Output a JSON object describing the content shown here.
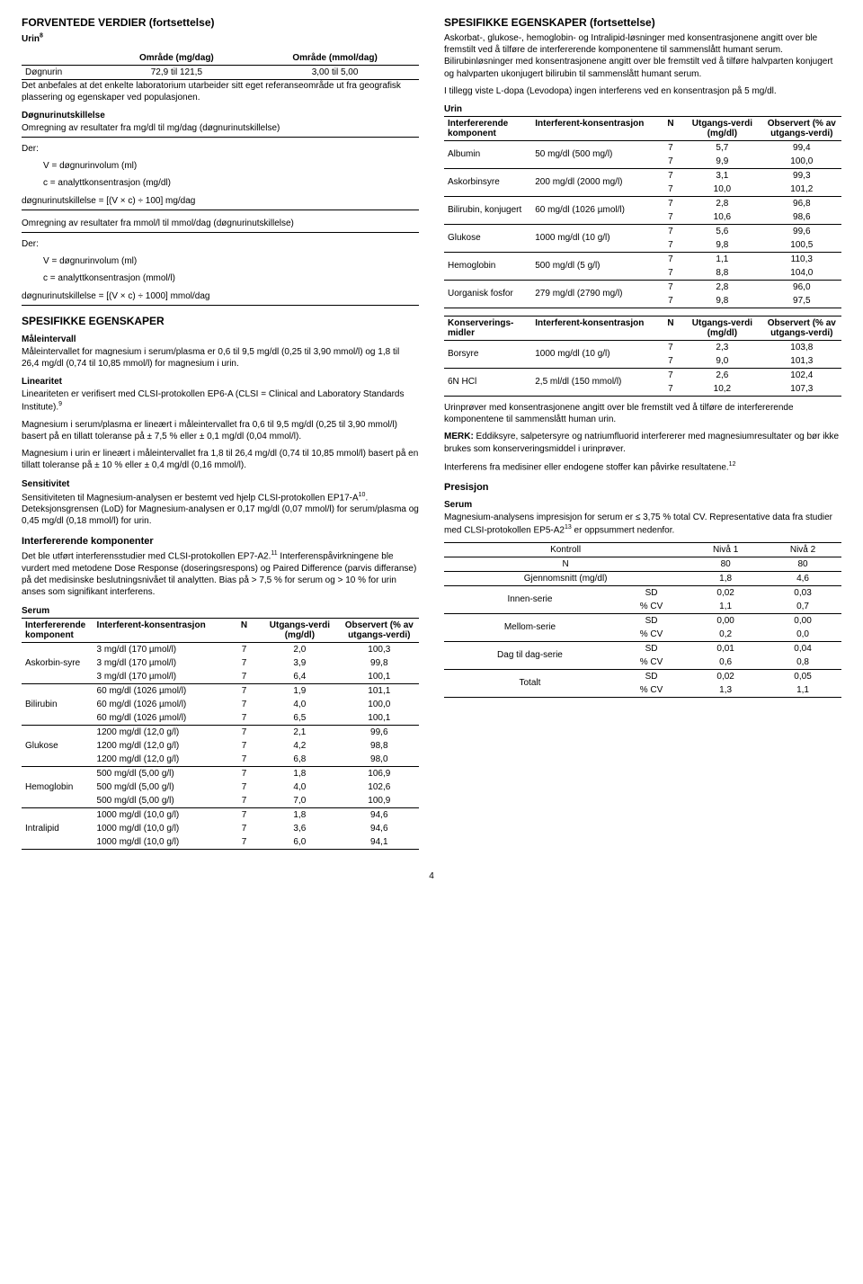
{
  "left": {
    "h2_forv": "FORVENTEDE VERDIER (fortsettelse)",
    "urin8": "Urin",
    "urin8_sup": "8",
    "tbl_urin_h1": "Område (mg/dag)",
    "tbl_urin_h2": "Område (mmol/dag)",
    "tbl_urin_row_label": "Døgnurin",
    "tbl_urin_row_v1": "72,9 til 121,5",
    "tbl_urin_row_v2": "3,00 til 5,00",
    "p_anbef": "Det anbefales at det enkelte laboratorium utarbeider sitt eget referanseområde ut fra geografisk plassering og egenskaper ved populasjonen.",
    "h4_dogn": "Døgnurinutskillelse",
    "p_omregn1": "Omregning av resultater fra mg/dl til mg/dag (døgnurinutskillelse)",
    "der": "Der:",
    "v_eq1": "V = døgnurinvolum (ml)",
    "c_eq1": "c = analyttkonsentrasjon (mg/dl)",
    "form1": "døgnurinutskillelse = [(V × c) ÷ 100] mg/dag",
    "p_omregn2": "Omregning av resultater fra mmol/l til mmol/dag (døgnurinutskillelse)",
    "v_eq2": "V = døgnurinvolum (ml)",
    "c_eq2": "c = analyttkonsentrasjon (mmol/l)",
    "form2": "døgnurinutskillelse = [(V × c) ÷ 1000] mmol/dag",
    "h2_spes": "SPESIFIKKE EGENSKAPER",
    "h4_maal": "Måleintervall",
    "p_maal": "Måleintervallet for magnesium i serum/plasma er 0,6 til 9,5 mg/dl (0,25 til 3,90 mmol/l) og 1,8 til 26,4 mg/dl (0,74 til 10,85 mmol/l) for magnesium i urin.",
    "h4_lin": "Linearitet",
    "p_lin1a": "Lineariteten er verifisert med CLSI-protokollen EP6-A (CLSI = Clinical and Laboratory Standards Institute).",
    "p_lin1_sup": "9",
    "p_lin2": "Magnesium i serum/plasma er lineært i måleintervallet fra 0,6 til 9,5 mg/dl (0,25 til 3,90 mmol/l) basert på en tillatt toleranse på ± 7,5 % eller ± 0,1 mg/dl (0,04 mmol/l).",
    "p_lin3": "Magnesium i urin er lineært i måleintervallet fra 1,8 til 26,4 mg/dl (0,74 til 10,85 mmol/l) basert på en tillatt toleranse på ± 10 % eller ± 0,4 mg/dl (0,16 mmol/l).",
    "h4_sens": "Sensitivitet",
    "p_sens_a": "Sensitiviteten til Magnesium-analysen er bestemt ved hjelp CLSI-protokollen EP17-A",
    "p_sens_sup": "10",
    "p_sens_b": ". Deteksjonsgrensen (LoD) for Magnesium-analysen er 0,17 mg/dl (0,07 mmol/l) for serum/plasma og 0,45 mg/dl (0,18 mmol/l) for urin.",
    "h3_int": "Interfererende komponenter",
    "p_int_a": "Det ble utført interferensstudier med CLSI-protokollen EP7-A2.",
    "p_int_sup": "11",
    "p_int_b": " Interferenspåvirkningene ble vurdert med metodene Dose Response (doseringsrespons) og Paired Difference (parvis differanse) på det medisinske beslutningsnivået til analytten. Bias på > 7,5 % for serum og > 10 % for urin anses som signifikant interferens.",
    "h4_serum": "Serum",
    "th_comp": "Interfererende komponent",
    "th_conc": "Interferent-konsentrasjon",
    "th_n": "N",
    "th_utg": "Utgangs-verdi (mg/dl)",
    "th_obs": "Observert (% av utgangs-verdi)",
    "serum_rows": [
      [
        "Askorbin-syre",
        "3 mg/dl (170 µmol/l)",
        "7",
        "2,0",
        "100,3"
      ],
      [
        "",
        "3 mg/dl (170 µmol/l)",
        "7",
        "3,9",
        "99,8"
      ],
      [
        "",
        "3 mg/dl (170 µmol/l)",
        "7",
        "6,4",
        "100,1"
      ],
      [
        "Bilirubin",
        "60 mg/dl (1026 µmol/l)",
        "7",
        "1,9",
        "101,1"
      ],
      [
        "",
        "60 mg/dl (1026 µmol/l)",
        "7",
        "4,0",
        "100,0"
      ],
      [
        "",
        "60 mg/dl (1026 µmol/l)",
        "7",
        "6,5",
        "100,1"
      ],
      [
        "Glukose",
        "1200 mg/dl (12,0 g/l)",
        "7",
        "2,1",
        "99,6"
      ],
      [
        "",
        "1200 mg/dl (12,0 g/l)",
        "7",
        "4,2",
        "98,8"
      ],
      [
        "",
        "1200 mg/dl (12,0 g/l)",
        "7",
        "6,8",
        "98,0"
      ],
      [
        "Hemoglobin",
        "500 mg/dl (5,00 g/l)",
        "7",
        "1,8",
        "106,9"
      ],
      [
        "",
        "500 mg/dl (5,00 g/l)",
        "7",
        "4,0",
        "102,6"
      ],
      [
        "",
        "500 mg/dl (5,00 g/l)",
        "7",
        "7,0",
        "100,9"
      ],
      [
        "Intralipid",
        "1000 mg/dl (10,0 g/l)",
        "7",
        "1,8",
        "94,6"
      ],
      [
        "",
        "1000 mg/dl (10,0 g/l)",
        "7",
        "3,6",
        "94,6"
      ],
      [
        "",
        "1000 mg/dl (10,0 g/l)",
        "7",
        "6,0",
        "94,1"
      ]
    ]
  },
  "right": {
    "h2_spes2": "SPESIFIKKE EGENSKAPER (fortsettelse)",
    "p_ask": "Askorbat-, glukose-, hemoglobin- og Intralipid-løsninger med konsentrasjonene angitt over ble fremstilt ved å tilføre de interfererende komponentene til sammenslått humant serum.  Bilirubinløsninger med konsentrasjonene angitt over ble fremstilt ved å tilføre halvparten konjugert og halvparten ukonjugert bilirubin til sammenslått humant serum.",
    "p_ldopa": "I tillegg viste L-dopa (Levodopa) ingen interferens ved en konsentrasjon på 5 mg/dl.",
    "h4_urin": "Urin",
    "th_comp": "Interfererende komponent",
    "th_conc": "Interferent-konsentrasjon",
    "th_n": "N",
    "th_utg": "Utgangs-verdi (mg/dl)",
    "th_obs": "Observert (% av utgangs-verdi)",
    "urin_rows": [
      [
        "Albumin",
        "50 mg/dl (500 mg/l)",
        "7",
        "5,7",
        "99,4"
      ],
      [
        "",
        "",
        "7",
        "9,9",
        "100,0"
      ],
      [
        "Askorbinsyre",
        "200 mg/dl (2000 mg/l)",
        "7",
        "3,1",
        "99,3"
      ],
      [
        "",
        "",
        "7",
        "10,0",
        "101,2"
      ],
      [
        "Bilirubin, konjugert",
        "60 mg/dl (1026 µmol/l)",
        "7",
        "2,8",
        "96,8"
      ],
      [
        "",
        "",
        "7",
        "10,6",
        "98,6"
      ],
      [
        "Glukose",
        "1000 mg/dl (10 g/l)",
        "7",
        "5,6",
        "99,6"
      ],
      [
        "",
        "",
        "7",
        "9,8",
        "100,5"
      ],
      [
        "Hemoglobin",
        "500 mg/dl (5 g/l)",
        "7",
        "1,1",
        "110,3"
      ],
      [
        "",
        "",
        "7",
        "8,8",
        "104,0"
      ],
      [
        "Uorganisk fosfor",
        "279 mg/dl (2790 mg/l)",
        "7",
        "2,8",
        "96,0"
      ],
      [
        "",
        "",
        "7",
        "9,8",
        "97,5"
      ]
    ],
    "th_kons": "Konserverings-midler",
    "kons_rows": [
      [
        "Borsyre",
        "1000 mg/dl (10 g/l)",
        "7",
        "2,3",
        "103,8"
      ],
      [
        "",
        "",
        "7",
        "9,0",
        "101,3"
      ],
      [
        "6N HCl",
        "2,5 ml/dl (150 mmol/l)",
        "7",
        "2,6",
        "102,4"
      ],
      [
        "",
        "",
        "7",
        "10,2",
        "107,3"
      ]
    ],
    "p_urinprover": "Urinprøver med konsentrasjonene angitt over ble fremstilt ved å tilføre de interfererende komponentene til sammenslått human urin.",
    "p_merk_b": "MERK:",
    "p_merk": " Eddiksyre, salpetersyre og natriumfluorid interfererer med magnesiumresultater og bør ikke brukes som konserveringsmiddel i urinprøver.",
    "p_interf_a": "Interferens fra medisiner eller endogene stoffer kan påvirke resultatene.",
    "p_interf_sup": "12",
    "h3_pres": "Presisjon",
    "h4_serum2": "Serum",
    "p_pres_a": "Magnesium-analysens impresisjon for serum er ≤ 3,75 % total CV. Representative data fra studier med CLSI-protokollen EP5-A2",
    "p_pres_sup": "13",
    "p_pres_b": " er oppsummert nedenfor.",
    "pres_h_k": "Kontroll",
    "pres_h_n1": "Nivå 1",
    "pres_h_n2": "Nivå 2",
    "pres_n": "N",
    "pres_n_v1": "80",
    "pres_n_v2": "80",
    "pres_gj": "Gjennomsnitt (mg/dl)",
    "pres_gj_v1": "1,8",
    "pres_gj_v2": "4,6",
    "pres_groups": [
      [
        "Innen-serie",
        "SD",
        "0,02",
        "0,03",
        "% CV",
        "1,1",
        "0,7"
      ],
      [
        "Mellom-serie",
        "SD",
        "0,00",
        "0,00",
        "% CV",
        "0,2",
        "0,0"
      ],
      [
        "Dag til dag-serie",
        "SD",
        "0,01",
        "0,04",
        "% CV",
        "0,6",
        "0,8"
      ],
      [
        "Totalt",
        "SD",
        "0,02",
        "0,05",
        "% CV",
        "1,3",
        "1,1"
      ]
    ]
  },
  "page": "4"
}
